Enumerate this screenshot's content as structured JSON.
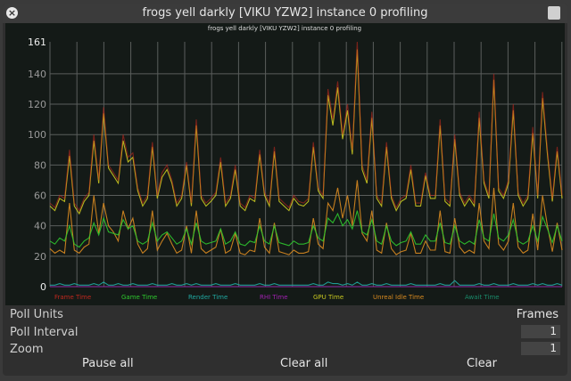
{
  "window": {
    "title": "frogs yell darkly [VIKU YZW2] instance 0 profiling"
  },
  "chart_data": {
    "type": "line",
    "title": "frogs yell darkly [VIKU YZW2] instance 0 profiling",
    "ylim": [
      0,
      161
    ],
    "yticks": [
      0,
      20,
      40,
      60,
      80,
      100,
      120,
      140,
      161
    ],
    "grid": true,
    "legend": "bottom",
    "series": [
      {
        "name": "Frame Time",
        "color": "#c0281e",
        "values": [
          55,
          52,
          60,
          58,
          90,
          55,
          50,
          58,
          62,
          100,
          70,
          118,
          80,
          75,
          70,
          100,
          85,
          88,
          65,
          55,
          60,
          95,
          60,
          75,
          80,
          70,
          55,
          60,
          82,
          55,
          110,
          60,
          55,
          58,
          62,
          85,
          55,
          60,
          80,
          55,
          52,
          60,
          58,
          90,
          62,
          55,
          92,
          58,
          55,
          52,
          60,
          56,
          55,
          58,
          95,
          65,
          60,
          130,
          110,
          135,
          100,
          120,
          90,
          161,
          80,
          70,
          115,
          60,
          55,
          95,
          60,
          52,
          58,
          60,
          80,
          55,
          55,
          75,
          60,
          60,
          110,
          58,
          55,
          100,
          62,
          55,
          60,
          55,
          115,
          70,
          60,
          140,
          65,
          60,
          70,
          120,
          62,
          55,
          60,
          105,
          60,
          128,
          90,
          58,
          92,
          60
        ]
      },
      {
        "name": "Game Time",
        "color": "#2ec82e",
        "values": [
          30,
          28,
          32,
          30,
          40,
          28,
          26,
          30,
          32,
          42,
          34,
          45,
          36,
          35,
          34,
          44,
          38,
          40,
          30,
          28,
          30,
          42,
          30,
          34,
          36,
          32,
          28,
          30,
          38,
          28,
          42,
          30,
          28,
          29,
          30,
          38,
          28,
          30,
          36,
          28,
          27,
          30,
          29,
          40,
          30,
          28,
          40,
          29,
          28,
          27,
          30,
          28,
          28,
          29,
          40,
          32,
          30,
          45,
          42,
          48,
          40,
          44,
          38,
          50,
          36,
          34,
          44,
          30,
          28,
          40,
          30,
          27,
          29,
          30,
          36,
          28,
          28,
          34,
          30,
          30,
          42,
          29,
          28,
          40,
          30,
          28,
          30,
          28,
          44,
          32,
          30,
          48,
          32,
          30,
          34,
          44,
          30,
          28,
          30,
          40,
          30,
          46,
          38,
          29,
          40,
          30
        ]
      },
      {
        "name": "Render Time",
        "color": "#20a8a0",
        "values": [
          1,
          1,
          2,
          1,
          1,
          2,
          1,
          1,
          1,
          2,
          1,
          3,
          1,
          1,
          2,
          1,
          1,
          2,
          1,
          1,
          1,
          2,
          1,
          1,
          1,
          2,
          1,
          1,
          2,
          1,
          2,
          1,
          1,
          1,
          2,
          1,
          1,
          1,
          2,
          1,
          1,
          1,
          1,
          2,
          1,
          1,
          2,
          1,
          1,
          1,
          1,
          1,
          1,
          1,
          2,
          1,
          1,
          3,
          2,
          2,
          1,
          2,
          1,
          3,
          1,
          1,
          2,
          1,
          1,
          2,
          1,
          1,
          1,
          1,
          2,
          1,
          1,
          1,
          1,
          1,
          2,
          1,
          1,
          4,
          1,
          1,
          1,
          1,
          2,
          1,
          1,
          2,
          1,
          1,
          1,
          2,
          1,
          1,
          1,
          2,
          1,
          2,
          1,
          1,
          2,
          1
        ]
      },
      {
        "name": "RHI Time",
        "color": "#a020b0",
        "values": [
          0,
          0,
          0,
          0,
          0,
          0,
          0,
          0,
          0,
          0
        ]
      },
      {
        "name": "GPU Time",
        "color": "#c8c820",
        "values": [
          53,
          50,
          58,
          56,
          86,
          53,
          48,
          56,
          60,
          96,
          68,
          114,
          78,
          73,
          68,
          96,
          82,
          85,
          63,
          53,
          58,
          92,
          58,
          72,
          77,
          68,
          53,
          58,
          80,
          53,
          106,
          58,
          53,
          56,
          60,
          82,
          53,
          58,
          77,
          53,
          50,
          58,
          56,
          87,
          60,
          53,
          89,
          56,
          53,
          50,
          58,
          54,
          53,
          56,
          92,
          63,
          58,
          126,
          106,
          131,
          97,
          116,
          87,
          156,
          77,
          68,
          111,
          58,
          53,
          92,
          58,
          50,
          56,
          58,
          77,
          53,
          53,
          73,
          58,
          58,
          106,
          56,
          53,
          97,
          60,
          53,
          58,
          53,
          111,
          68,
          58,
          136,
          63,
          58,
          68,
          116,
          60,
          53,
          58,
          101,
          58,
          124,
          87,
          56,
          89,
          58
        ]
      },
      {
        "name": "Unreal Idle Time",
        "color": "#d88a20",
        "values": [
          25,
          22,
          24,
          22,
          55,
          24,
          22,
          26,
          28,
          60,
          35,
          55,
          40,
          36,
          30,
          50,
          38,
          45,
          28,
          22,
          25,
          50,
          24,
          30,
          35,
          28,
          22,
          24,
          40,
          22,
          50,
          25,
          22,
          24,
          26,
          38,
          22,
          24,
          35,
          22,
          21,
          24,
          23,
          45,
          26,
          22,
          42,
          23,
          22,
          21,
          24,
          22,
          22,
          23,
          45,
          28,
          25,
          55,
          50,
          65,
          45,
          60,
          40,
          70,
          35,
          30,
          50,
          24,
          22,
          42,
          25,
          21,
          23,
          24,
          35,
          22,
          22,
          30,
          24,
          24,
          50,
          23,
          22,
          45,
          26,
          22,
          24,
          22,
          55,
          30,
          25,
          65,
          28,
          24,
          30,
          55,
          26,
          22,
          24,
          48,
          24,
          60,
          40,
          23,
          42,
          24
        ]
      },
      {
        "name": "Await Time",
        "color": "#1a8a6a",
        "values": [
          0,
          0,
          0,
          0,
          0,
          0,
          0,
          0,
          0,
          0
        ]
      }
    ]
  },
  "settings": {
    "poll_units_label": "Poll Units",
    "poll_units_value": "Frames",
    "poll_interval_label": "Poll Interval",
    "poll_interval_value": "1",
    "zoom_label": "Zoom",
    "zoom_value": "1"
  },
  "buttons": {
    "pause_all": "Pause all",
    "clear_all": "Clear all",
    "clear": "Clear"
  }
}
